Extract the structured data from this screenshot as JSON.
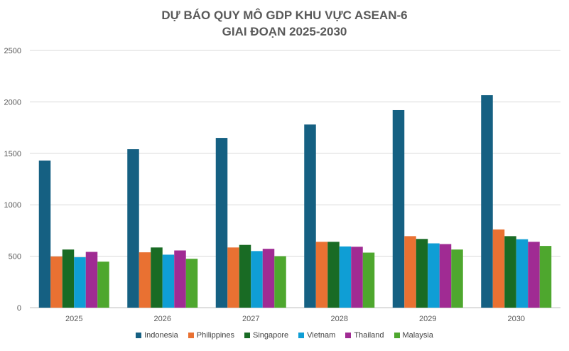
{
  "chart_data": {
    "type": "bar",
    "title_line1": "DỰ BÁO QUY MÔ GDP KHU VỰC ASEAN-6",
    "title_line2": "GIAI ĐOẠN 2025-2030",
    "categories": [
      "2025",
      "2026",
      "2027",
      "2028",
      "2029",
      "2030"
    ],
    "ylim": [
      0,
      2500
    ],
    "yticks": [
      0,
      500,
      1000,
      1500,
      2000,
      2500
    ],
    "grid": true,
    "legend_position": "bottom",
    "series": [
      {
        "name": "Indonesia",
        "color": "#156082",
        "values": [
          1430,
          1540,
          1650,
          1780,
          1920,
          2065
        ]
      },
      {
        "name": "Philippines",
        "color": "#E97132",
        "values": [
          497,
          538,
          585,
          640,
          695,
          760
        ]
      },
      {
        "name": "Singapore",
        "color": "#196B24",
        "values": [
          565,
          585,
          610,
          640,
          668,
          695
        ]
      },
      {
        "name": "Vietnam",
        "color": "#0F9ED5",
        "values": [
          490,
          515,
          550,
          595,
          625,
          665
        ]
      },
      {
        "name": "Thailand",
        "color": "#A02B93",
        "values": [
          542,
          556,
          572,
          592,
          618,
          640
        ]
      },
      {
        "name": "Malaysia",
        "color": "#4EA72E",
        "values": [
          447,
          475,
          500,
          535,
          565,
          600
        ]
      }
    ]
  }
}
